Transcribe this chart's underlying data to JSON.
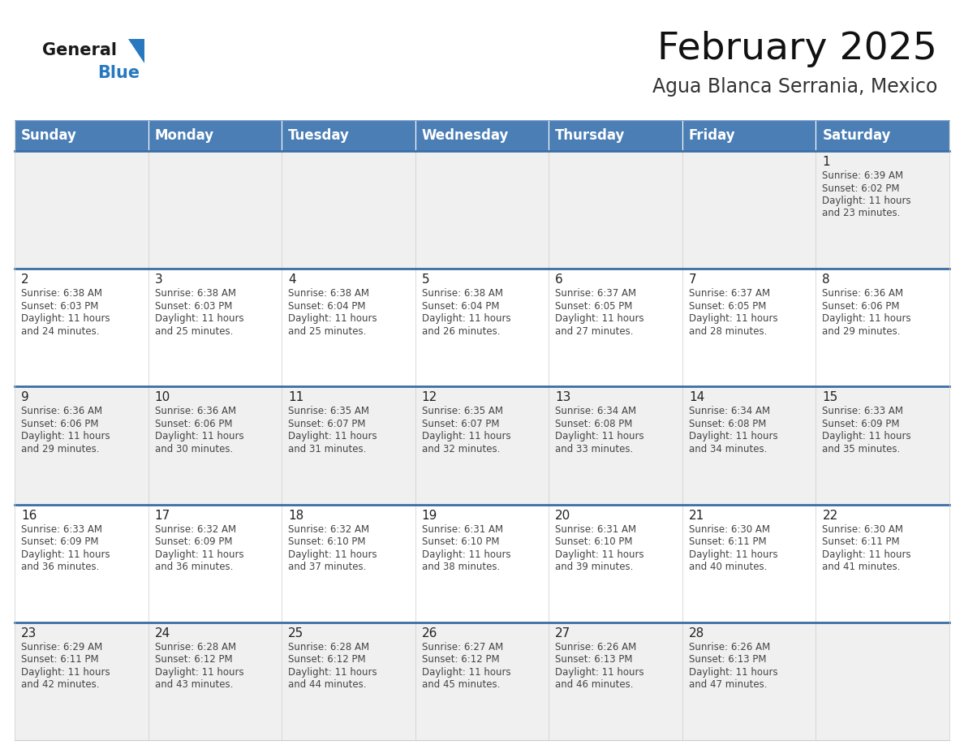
{
  "title": "February 2025",
  "subtitle": "Agua Blanca Serrania, Mexico",
  "header_color": "#4a7eb5",
  "header_text_color": "#ffffff",
  "cell_bg_odd": "#f0f0f0",
  "cell_bg_even": "#ffffff",
  "separator_color": "#3a6ea5",
  "border_color": "#cccccc",
  "day_names": [
    "Sunday",
    "Monday",
    "Tuesday",
    "Wednesday",
    "Thursday",
    "Friday",
    "Saturday"
  ],
  "title_fontsize": 34,
  "subtitle_fontsize": 17,
  "header_fontsize": 12,
  "day_num_fontsize": 11,
  "cell_fontsize": 8.5,
  "logo_general_color": "#1a1a1a",
  "logo_blue_color": "#2878c0",
  "calendar": [
    [
      null,
      null,
      null,
      null,
      null,
      null,
      {
        "day": 1,
        "sunrise": "6:39 AM",
        "sunset": "6:02 PM",
        "daylight": "11 hours and 23 minutes."
      }
    ],
    [
      {
        "day": 2,
        "sunrise": "6:38 AM",
        "sunset": "6:03 PM",
        "daylight": "11 hours and 24 minutes."
      },
      {
        "day": 3,
        "sunrise": "6:38 AM",
        "sunset": "6:03 PM",
        "daylight": "11 hours and 25 minutes."
      },
      {
        "day": 4,
        "sunrise": "6:38 AM",
        "sunset": "6:04 PM",
        "daylight": "11 hours and 25 minutes."
      },
      {
        "day": 5,
        "sunrise": "6:38 AM",
        "sunset": "6:04 PM",
        "daylight": "11 hours and 26 minutes."
      },
      {
        "day": 6,
        "sunrise": "6:37 AM",
        "sunset": "6:05 PM",
        "daylight": "11 hours and 27 minutes."
      },
      {
        "day": 7,
        "sunrise": "6:37 AM",
        "sunset": "6:05 PM",
        "daylight": "11 hours and 28 minutes."
      },
      {
        "day": 8,
        "sunrise": "6:36 AM",
        "sunset": "6:06 PM",
        "daylight": "11 hours and 29 minutes."
      }
    ],
    [
      {
        "day": 9,
        "sunrise": "6:36 AM",
        "sunset": "6:06 PM",
        "daylight": "11 hours and 29 minutes."
      },
      {
        "day": 10,
        "sunrise": "6:36 AM",
        "sunset": "6:06 PM",
        "daylight": "11 hours and 30 minutes."
      },
      {
        "day": 11,
        "sunrise": "6:35 AM",
        "sunset": "6:07 PM",
        "daylight": "11 hours and 31 minutes."
      },
      {
        "day": 12,
        "sunrise": "6:35 AM",
        "sunset": "6:07 PM",
        "daylight": "11 hours and 32 minutes."
      },
      {
        "day": 13,
        "sunrise": "6:34 AM",
        "sunset": "6:08 PM",
        "daylight": "11 hours and 33 minutes."
      },
      {
        "day": 14,
        "sunrise": "6:34 AM",
        "sunset": "6:08 PM",
        "daylight": "11 hours and 34 minutes."
      },
      {
        "day": 15,
        "sunrise": "6:33 AM",
        "sunset": "6:09 PM",
        "daylight": "11 hours and 35 minutes."
      }
    ],
    [
      {
        "day": 16,
        "sunrise": "6:33 AM",
        "sunset": "6:09 PM",
        "daylight": "11 hours and 36 minutes."
      },
      {
        "day": 17,
        "sunrise": "6:32 AM",
        "sunset": "6:09 PM",
        "daylight": "11 hours and 36 minutes."
      },
      {
        "day": 18,
        "sunrise": "6:32 AM",
        "sunset": "6:10 PM",
        "daylight": "11 hours and 37 minutes."
      },
      {
        "day": 19,
        "sunrise": "6:31 AM",
        "sunset": "6:10 PM",
        "daylight": "11 hours and 38 minutes."
      },
      {
        "day": 20,
        "sunrise": "6:31 AM",
        "sunset": "6:10 PM",
        "daylight": "11 hours and 39 minutes."
      },
      {
        "day": 21,
        "sunrise": "6:30 AM",
        "sunset": "6:11 PM",
        "daylight": "11 hours and 40 minutes."
      },
      {
        "day": 22,
        "sunrise": "6:30 AM",
        "sunset": "6:11 PM",
        "daylight": "11 hours and 41 minutes."
      }
    ],
    [
      {
        "day": 23,
        "sunrise": "6:29 AM",
        "sunset": "6:11 PM",
        "daylight": "11 hours and 42 minutes."
      },
      {
        "day": 24,
        "sunrise": "6:28 AM",
        "sunset": "6:12 PM",
        "daylight": "11 hours and 43 minutes."
      },
      {
        "day": 25,
        "sunrise": "6:28 AM",
        "sunset": "6:12 PM",
        "daylight": "11 hours and 44 minutes."
      },
      {
        "day": 26,
        "sunrise": "6:27 AM",
        "sunset": "6:12 PM",
        "daylight": "11 hours and 45 minutes."
      },
      {
        "day": 27,
        "sunrise": "6:26 AM",
        "sunset": "6:13 PM",
        "daylight": "11 hours and 46 minutes."
      },
      {
        "day": 28,
        "sunrise": "6:26 AM",
        "sunset": "6:13 PM",
        "daylight": "11 hours and 47 minutes."
      },
      null
    ]
  ]
}
